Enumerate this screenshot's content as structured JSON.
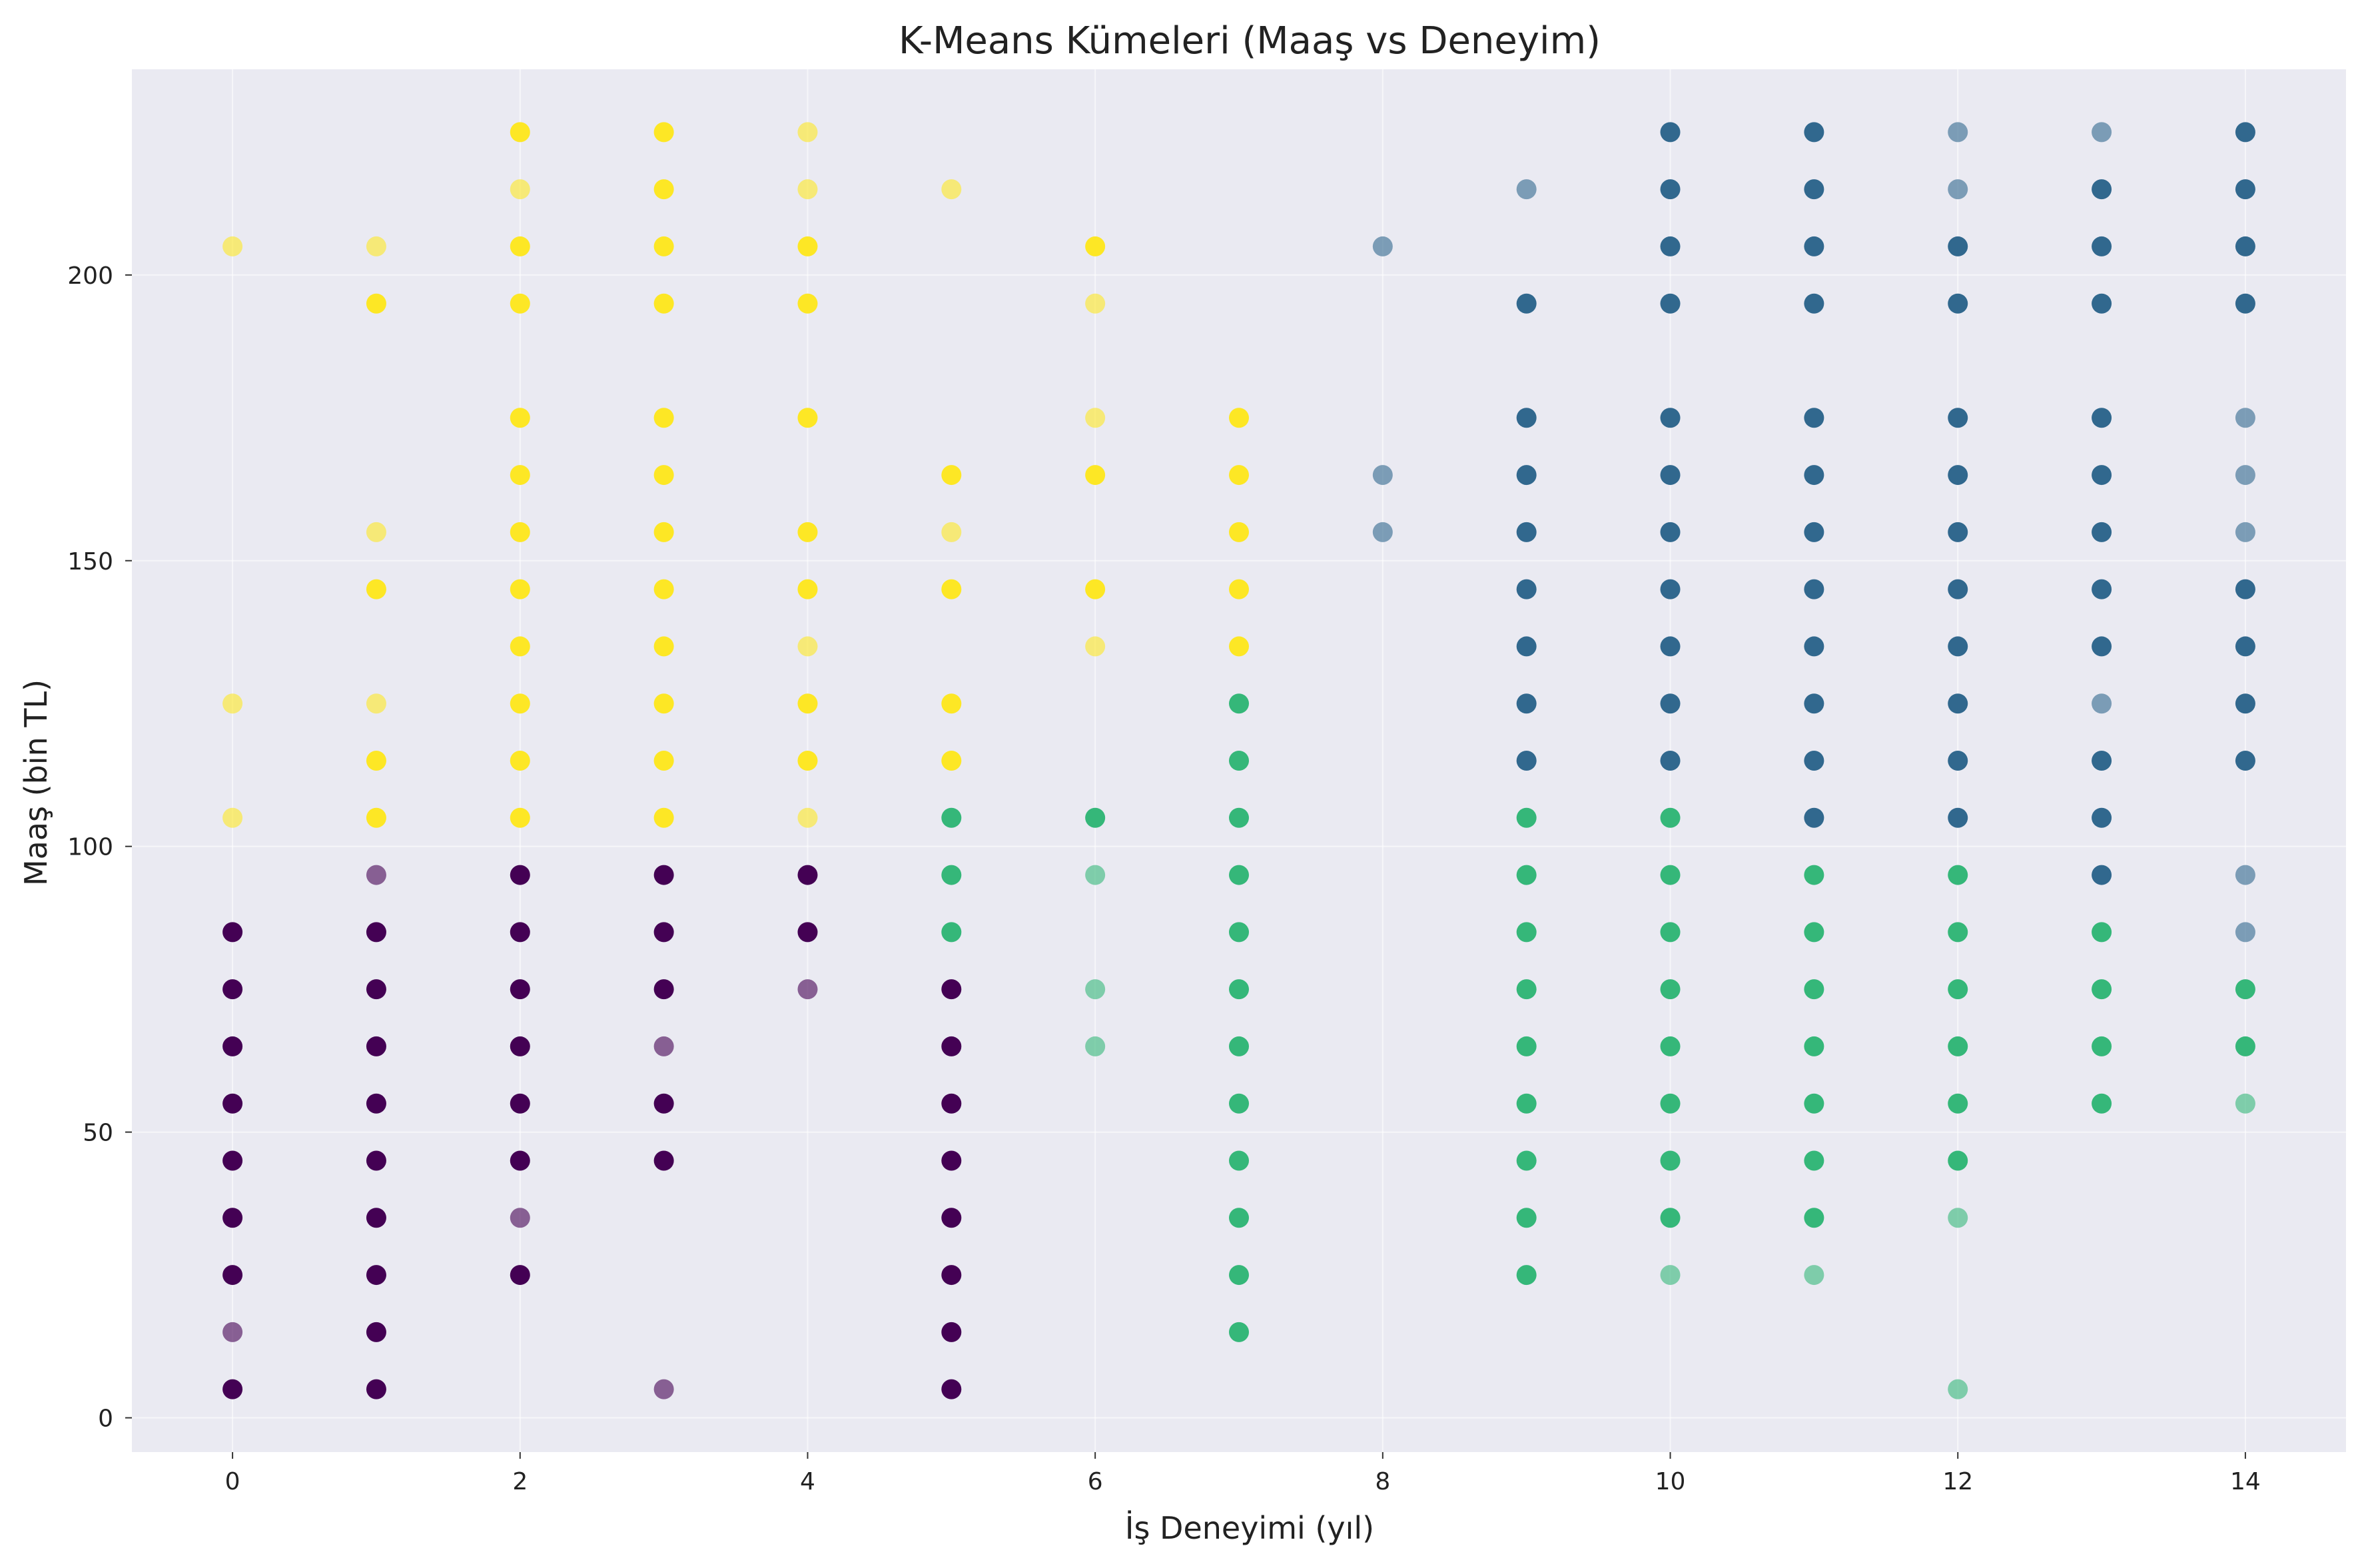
{
  "chart_data": {
    "type": "scatter",
    "title": "K-Means Kümeleri (Maaş vs Deneyim)",
    "xlabel": "İş Deneyimi (yıl)",
    "ylabel": "Maaş (bin TL)",
    "xlim": [
      -0.7,
      14.7
    ],
    "ylim": [
      -6,
      236
    ],
    "xticks": [
      0,
      2,
      4,
      6,
      8,
      10,
      12,
      14
    ],
    "yticks": [
      0,
      50,
      100,
      150,
      200
    ],
    "grid": true,
    "background": "#eaeaf2",
    "cluster_colors": [
      "#440154",
      "#31688e",
      "#35b779",
      "#fde725"
    ],
    "points": [
      [
        0,
        5,
        0,
        1
      ],
      [
        0,
        15,
        0,
        0.6
      ],
      [
        0,
        25,
        0,
        1
      ],
      [
        0,
        35,
        0,
        1
      ],
      [
        0,
        45,
        0,
        1
      ],
      [
        0,
        55,
        0,
        1
      ],
      [
        0,
        65,
        0,
        1
      ],
      [
        0,
        75,
        0,
        1
      ],
      [
        0,
        85,
        0,
        1
      ],
      [
        0,
        105,
        3,
        0.6
      ],
      [
        0,
        125,
        3,
        0.6
      ],
      [
        0,
        205,
        3,
        0.6
      ],
      [
        1,
        5,
        0,
        1
      ],
      [
        1,
        15,
        0,
        1
      ],
      [
        1,
        25,
        0,
        1
      ],
      [
        1,
        35,
        0,
        1
      ],
      [
        1,
        45,
        0,
        1
      ],
      [
        1,
        55,
        0,
        1
      ],
      [
        1,
        65,
        0,
        1
      ],
      [
        1,
        75,
        0,
        1
      ],
      [
        1,
        85,
        0,
        1
      ],
      [
        1,
        95,
        0,
        0.6
      ],
      [
        1,
        105,
        3,
        1
      ],
      [
        1,
        115,
        3,
        1
      ],
      [
        1,
        125,
        3,
        0.6
      ],
      [
        1,
        145,
        3,
        1
      ],
      [
        1,
        155,
        3,
        0.6
      ],
      [
        1,
        195,
        3,
        1
      ],
      [
        1,
        205,
        3,
        0.6
      ],
      [
        2,
        25,
        0,
        1
      ],
      [
        2,
        35,
        0,
        0.6
      ],
      [
        2,
        45,
        0,
        1
      ],
      [
        2,
        55,
        0,
        1
      ],
      [
        2,
        65,
        0,
        1
      ],
      [
        2,
        75,
        0,
        1
      ],
      [
        2,
        85,
        0,
        1
      ],
      [
        2,
        95,
        0,
        1
      ],
      [
        2,
        105,
        3,
        1
      ],
      [
        2,
        115,
        3,
        1
      ],
      [
        2,
        125,
        3,
        1
      ],
      [
        2,
        135,
        3,
        1
      ],
      [
        2,
        145,
        3,
        1
      ],
      [
        2,
        155,
        3,
        1
      ],
      [
        2,
        165,
        3,
        1
      ],
      [
        2,
        175,
        3,
        1
      ],
      [
        2,
        195,
        3,
        1
      ],
      [
        2,
        205,
        3,
        1
      ],
      [
        2,
        215,
        3,
        0.6
      ],
      [
        2,
        225,
        3,
        1
      ],
      [
        3,
        5,
        0,
        0.6
      ],
      [
        3,
        45,
        0,
        1
      ],
      [
        3,
        55,
        0,
        1
      ],
      [
        3,
        65,
        0,
        0.6
      ],
      [
        3,
        75,
        0,
        1
      ],
      [
        3,
        85,
        0,
        1
      ],
      [
        3,
        95,
        0,
        1
      ],
      [
        3,
        105,
        3,
        1
      ],
      [
        3,
        115,
        3,
        1
      ],
      [
        3,
        125,
        3,
        1
      ],
      [
        3,
        135,
        3,
        1
      ],
      [
        3,
        145,
        3,
        1
      ],
      [
        3,
        155,
        3,
        1
      ],
      [
        3,
        165,
        3,
        1
      ],
      [
        3,
        175,
        3,
        1
      ],
      [
        3,
        195,
        3,
        1
      ],
      [
        3,
        205,
        3,
        1
      ],
      [
        3,
        215,
        3,
        1
      ],
      [
        3,
        225,
        3,
        1
      ],
      [
        4,
        75,
        0,
        0.6
      ],
      [
        4,
        85,
        0,
        1
      ],
      [
        4,
        95,
        0,
        1
      ],
      [
        4,
        105,
        3,
        0.6
      ],
      [
        4,
        115,
        3,
        1
      ],
      [
        4,
        125,
        3,
        1
      ],
      [
        4,
        135,
        3,
        0.6
      ],
      [
        4,
        145,
        3,
        1
      ],
      [
        4,
        155,
        3,
        1
      ],
      [
        4,
        175,
        3,
        1
      ],
      [
        4,
        195,
        3,
        1
      ],
      [
        4,
        205,
        3,
        1
      ],
      [
        4,
        215,
        3,
        0.6
      ],
      [
        4,
        225,
        3,
        0.6
      ],
      [
        5,
        5,
        0,
        1
      ],
      [
        5,
        15,
        0,
        1
      ],
      [
        5,
        25,
        0,
        1
      ],
      [
        5,
        35,
        0,
        1
      ],
      [
        5,
        45,
        0,
        1
      ],
      [
        5,
        55,
        0,
        1
      ],
      [
        5,
        65,
        0,
        1
      ],
      [
        5,
        75,
        0,
        1
      ],
      [
        5,
        85,
        2,
        1
      ],
      [
        5,
        95,
        2,
        1
      ],
      [
        5,
        105,
        2,
        1
      ],
      [
        5,
        115,
        3,
        1
      ],
      [
        5,
        125,
        3,
        1
      ],
      [
        5,
        145,
        3,
        1
      ],
      [
        5,
        155,
        3,
        0.6
      ],
      [
        5,
        165,
        3,
        1
      ],
      [
        5,
        215,
        3,
        0.6
      ],
      [
        6,
        65,
        2,
        0.6
      ],
      [
        6,
        75,
        2,
        0.6
      ],
      [
        6,
        95,
        2,
        0.6
      ],
      [
        6,
        105,
        2,
        1
      ],
      [
        6,
        135,
        3,
        0.6
      ],
      [
        6,
        145,
        3,
        1
      ],
      [
        6,
        165,
        3,
        1
      ],
      [
        6,
        175,
        3,
        0.6
      ],
      [
        6,
        195,
        3,
        0.6
      ],
      [
        6,
        205,
        3,
        1
      ],
      [
        7,
        15,
        2,
        1
      ],
      [
        7,
        25,
        2,
        1
      ],
      [
        7,
        35,
        2,
        1
      ],
      [
        7,
        45,
        2,
        1
      ],
      [
        7,
        55,
        2,
        1
      ],
      [
        7,
        65,
        2,
        1
      ],
      [
        7,
        75,
        2,
        1
      ],
      [
        7,
        85,
        2,
        1
      ],
      [
        7,
        95,
        2,
        1
      ],
      [
        7,
        105,
        2,
        1
      ],
      [
        7,
        115,
        2,
        1
      ],
      [
        7,
        125,
        2,
        1
      ],
      [
        7,
        135,
        3,
        1
      ],
      [
        7,
        145,
        3,
        1
      ],
      [
        7,
        155,
        3,
        1
      ],
      [
        7,
        165,
        3,
        1
      ],
      [
        7,
        175,
        3,
        1
      ],
      [
        8,
        155,
        1,
        0.6
      ],
      [
        8,
        165,
        1,
        0.6
      ],
      [
        8,
        205,
        1,
        0.6
      ],
      [
        9,
        25,
        2,
        1
      ],
      [
        9,
        35,
        2,
        1
      ],
      [
        9,
        45,
        2,
        1
      ],
      [
        9,
        55,
        2,
        1
      ],
      [
        9,
        65,
        2,
        1
      ],
      [
        9,
        75,
        2,
        1
      ],
      [
        9,
        85,
        2,
        1
      ],
      [
        9,
        95,
        2,
        1
      ],
      [
        9,
        105,
        2,
        1
      ],
      [
        9,
        115,
        1,
        1
      ],
      [
        9,
        125,
        1,
        1
      ],
      [
        9,
        135,
        1,
        1
      ],
      [
        9,
        145,
        1,
        1
      ],
      [
        9,
        155,
        1,
        1
      ],
      [
        9,
        165,
        1,
        1
      ],
      [
        9,
        175,
        1,
        1
      ],
      [
        9,
        195,
        1,
        1
      ],
      [
        9,
        215,
        1,
        0.6
      ],
      [
        10,
        25,
        2,
        0.6
      ],
      [
        10,
        35,
        2,
        1
      ],
      [
        10,
        45,
        2,
        1
      ],
      [
        10,
        55,
        2,
        1
      ],
      [
        10,
        65,
        2,
        1
      ],
      [
        10,
        75,
        2,
        1
      ],
      [
        10,
        85,
        2,
        1
      ],
      [
        10,
        95,
        2,
        1
      ],
      [
        10,
        105,
        2,
        1
      ],
      [
        10,
        115,
        1,
        1
      ],
      [
        10,
        125,
        1,
        1
      ],
      [
        10,
        135,
        1,
        1
      ],
      [
        10,
        145,
        1,
        1
      ],
      [
        10,
        155,
        1,
        1
      ],
      [
        10,
        165,
        1,
        1
      ],
      [
        10,
        175,
        1,
        1
      ],
      [
        10,
        195,
        1,
        1
      ],
      [
        10,
        205,
        1,
        1
      ],
      [
        10,
        215,
        1,
        1
      ],
      [
        10,
        225,
        1,
        1
      ],
      [
        11,
        25,
        2,
        0.6
      ],
      [
        11,
        35,
        2,
        1
      ],
      [
        11,
        45,
        2,
        1
      ],
      [
        11,
        55,
        2,
        1
      ],
      [
        11,
        65,
        2,
        1
      ],
      [
        11,
        75,
        2,
        1
      ],
      [
        11,
        85,
        2,
        1
      ],
      [
        11,
        95,
        2,
        1
      ],
      [
        11,
        105,
        1,
        1
      ],
      [
        11,
        115,
        1,
        1
      ],
      [
        11,
        125,
        1,
        1
      ],
      [
        11,
        135,
        1,
        1
      ],
      [
        11,
        145,
        1,
        1
      ],
      [
        11,
        155,
        1,
        1
      ],
      [
        11,
        165,
        1,
        1
      ],
      [
        11,
        175,
        1,
        1
      ],
      [
        11,
        195,
        1,
        1
      ],
      [
        11,
        205,
        1,
        1
      ],
      [
        11,
        215,
        1,
        1
      ],
      [
        11,
        225,
        1,
        1
      ],
      [
        12,
        5,
        2,
        0.6
      ],
      [
        12,
        35,
        2,
        0.6
      ],
      [
        12,
        45,
        2,
        1
      ],
      [
        12,
        55,
        2,
        1
      ],
      [
        12,
        65,
        2,
        1
      ],
      [
        12,
        75,
        2,
        1
      ],
      [
        12,
        85,
        2,
        1
      ],
      [
        12,
        95,
        2,
        1
      ],
      [
        12,
        105,
        1,
        1
      ],
      [
        12,
        115,
        1,
        1
      ],
      [
        12,
        125,
        1,
        1
      ],
      [
        12,
        135,
        1,
        1
      ],
      [
        12,
        145,
        1,
        1
      ],
      [
        12,
        155,
        1,
        1
      ],
      [
        12,
        165,
        1,
        1
      ],
      [
        12,
        175,
        1,
        1
      ],
      [
        12,
        195,
        1,
        1
      ],
      [
        12,
        205,
        1,
        1
      ],
      [
        12,
        215,
        1,
        0.6
      ],
      [
        12,
        225,
        1,
        0.6
      ],
      [
        13,
        55,
        2,
        1
      ],
      [
        13,
        65,
        2,
        1
      ],
      [
        13,
        75,
        2,
        1
      ],
      [
        13,
        85,
        2,
        1
      ],
      [
        13,
        95,
        1,
        1
      ],
      [
        13,
        105,
        1,
        1
      ],
      [
        13,
        115,
        1,
        1
      ],
      [
        13,
        125,
        1,
        0.6
      ],
      [
        13,
        135,
        1,
        1
      ],
      [
        13,
        145,
        1,
        1
      ],
      [
        13,
        155,
        1,
        1
      ],
      [
        13,
        165,
        1,
        1
      ],
      [
        13,
        175,
        1,
        1
      ],
      [
        13,
        195,
        1,
        1
      ],
      [
        13,
        205,
        1,
        1
      ],
      [
        13,
        215,
        1,
        1
      ],
      [
        13,
        225,
        1,
        0.6
      ],
      [
        14,
        55,
        2,
        0.6
      ],
      [
        14,
        65,
        2,
        1
      ],
      [
        14,
        75,
        2,
        1
      ],
      [
        14,
        85,
        1,
        0.6
      ],
      [
        14,
        95,
        1,
        0.6
      ],
      [
        14,
        115,
        1,
        1
      ],
      [
        14,
        125,
        1,
        1
      ],
      [
        14,
        135,
        1,
        1
      ],
      [
        14,
        145,
        1,
        1
      ],
      [
        14,
        155,
        1,
        0.6
      ],
      [
        14,
        165,
        1,
        0.6
      ],
      [
        14,
        175,
        1,
        0.6
      ],
      [
        14,
        195,
        1,
        1
      ],
      [
        14,
        205,
        1,
        1
      ],
      [
        14,
        215,
        1,
        1
      ],
      [
        14,
        225,
        1,
        1
      ]
    ]
  }
}
